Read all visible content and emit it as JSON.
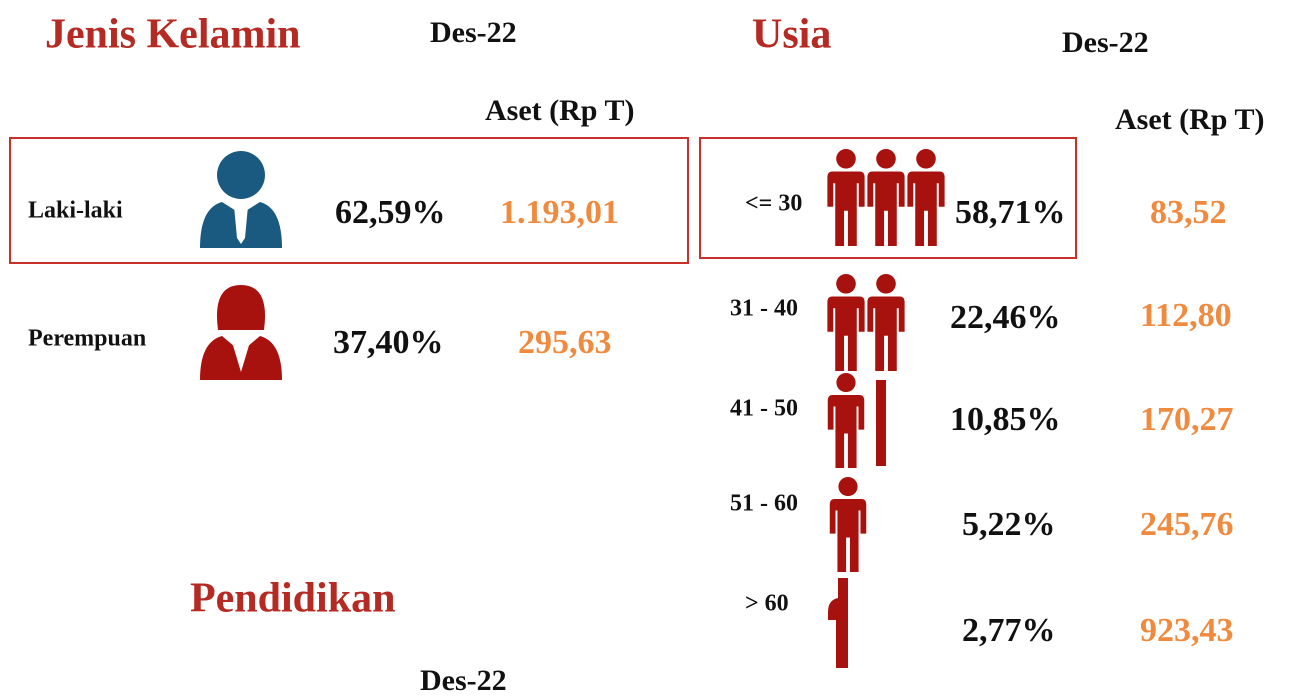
{
  "gender": {
    "title": "Jenis Kelamin",
    "period": "Des-22",
    "asset_header": "Aset (Rp T)",
    "rows": [
      {
        "label": "Laki-laki",
        "share": "62,59%",
        "asset": "1.193,01"
      },
      {
        "label": "Perempuan",
        "share": "37,40%",
        "asset": "295,63"
      }
    ]
  },
  "age": {
    "title": "Usia",
    "period": "Des-22",
    "asset_header": "Aset (Rp T)",
    "rows": [
      {
        "label": "<= 30",
        "share": "58,71%",
        "asset": "83,52"
      },
      {
        "label": "31 - 40",
        "share": "22,46%",
        "asset": "112,80"
      },
      {
        "label": "41 - 50",
        "share": "10,85%",
        "asset": "170,27"
      },
      {
        "label": "51 - 60",
        "share": "5,22%",
        "asset": "245,76"
      },
      {
        "label": "> 60",
        "share": "2,77%",
        "asset": "923,43"
      }
    ]
  },
  "education": {
    "title": "Pendidikan",
    "period": "Des-22"
  }
}
